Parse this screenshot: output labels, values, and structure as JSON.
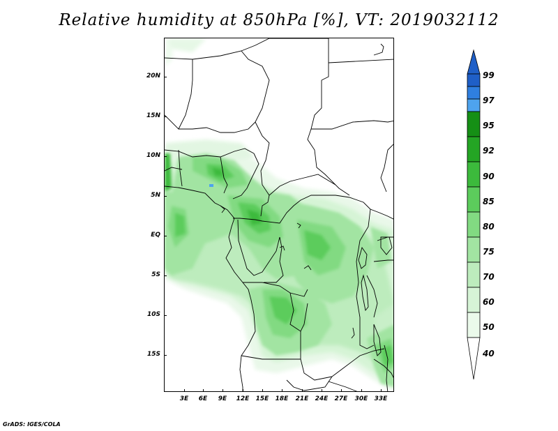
{
  "title": "Relative humidity at 850hPa [%], VT: 2019032112",
  "credit": "GrADS: IGES/COLA",
  "map": {
    "lat_labels": [
      "20N",
      "15N",
      "10N",
      "5N",
      "EQ",
      "5S",
      "10S",
      "15S"
    ],
    "lat_values": [
      20,
      15,
      10,
      5,
      0,
      -5,
      -10,
      -15
    ],
    "lon_labels": [
      "3E",
      "6E",
      "9E",
      "12E",
      "15E",
      "18E",
      "21E",
      "24E",
      "27E",
      "30E",
      "33E"
    ],
    "lon_values": [
      3,
      6,
      9,
      12,
      15,
      18,
      21,
      24,
      27,
      30,
      33
    ],
    "lon_range": [
      0.3,
      35.3
    ],
    "lat_range": [
      -19.5,
      25
    ]
  },
  "colorbar": {
    "labels": [
      "99",
      "97",
      "95",
      "92",
      "90",
      "85",
      "80",
      "75",
      "70",
      "60",
      "50",
      "40"
    ],
    "colors": [
      "#1f5fc7",
      "#2f7fe0",
      "#4ea3ee",
      "#158f15",
      "#24a524",
      "#3cba3c",
      "#5ccc5c",
      "#82da82",
      "#a2e4a2",
      "#bdecbd",
      "#d6f4d6",
      "#ebfaeb"
    ],
    "top_color": "#1f5fc7",
    "bottom_color": "#ffffff"
  }
}
